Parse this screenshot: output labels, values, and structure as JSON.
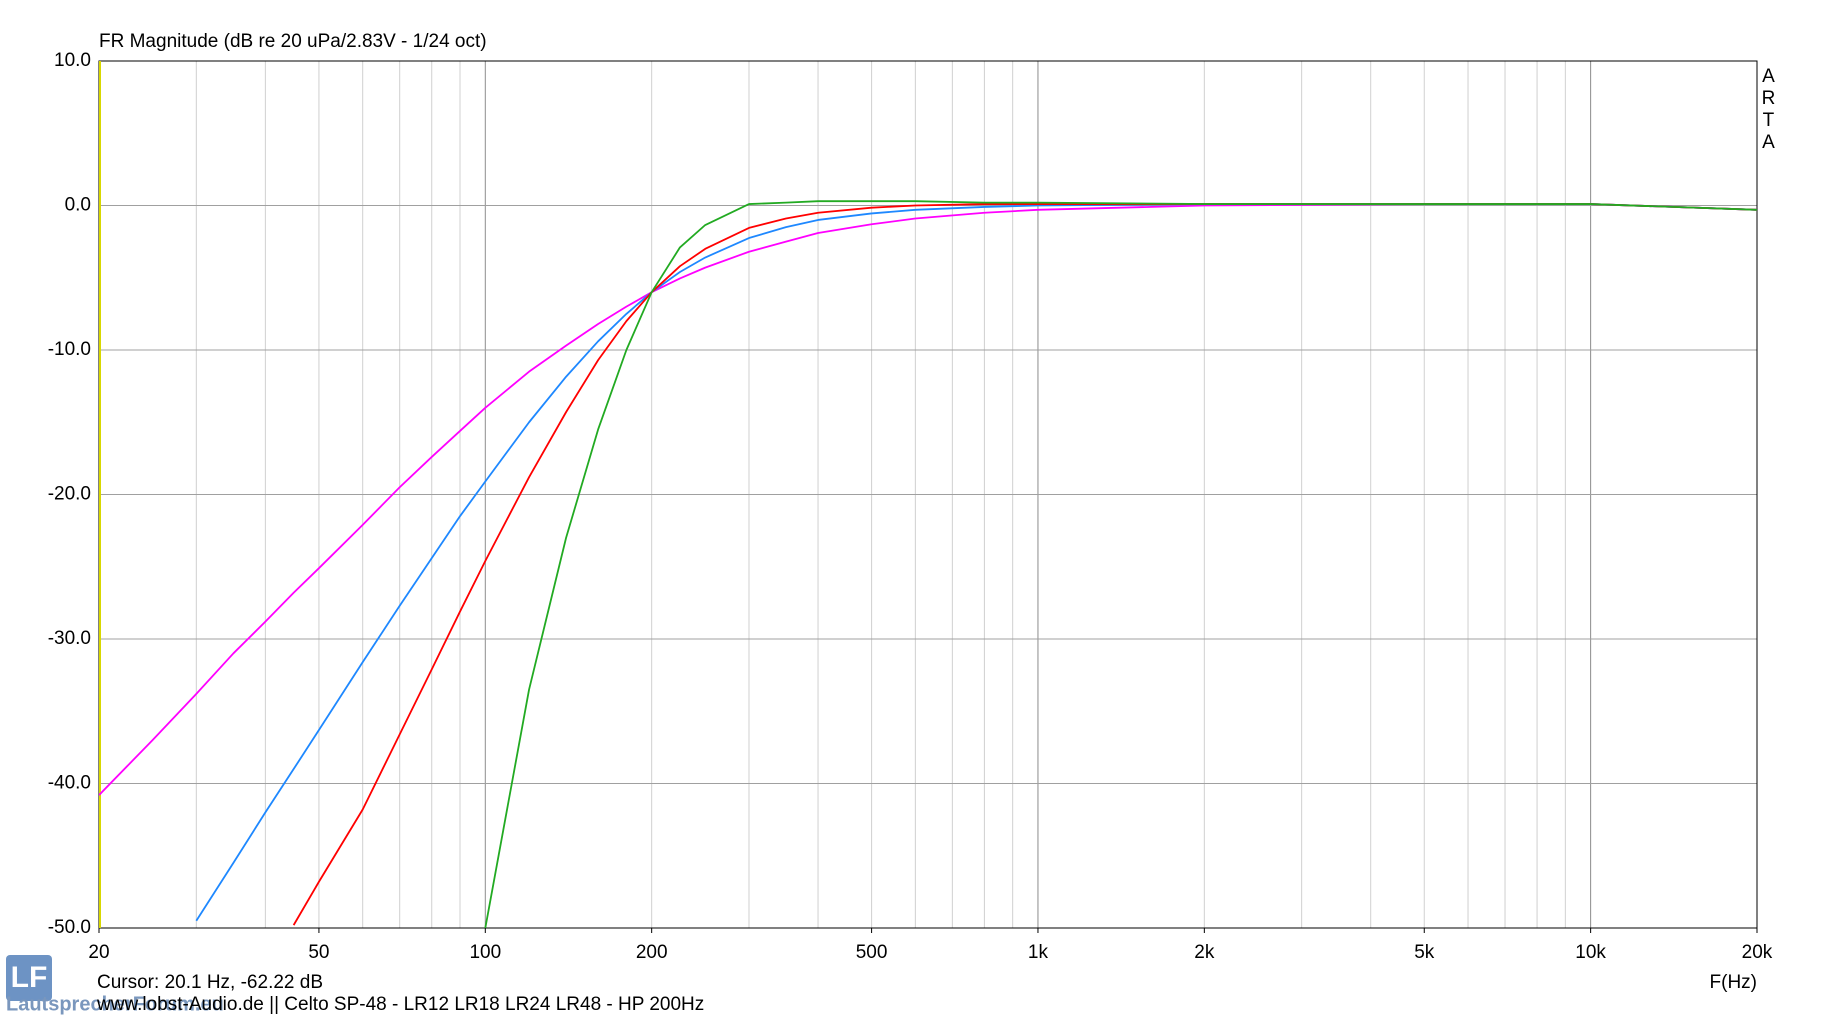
{
  "chart_data": {
    "type": "line",
    "title": "FR Magnitude (dB re 20 uPa/2.83V - 1/24 oct)",
    "brand": "ARTA",
    "cursor_readout": "Cursor: 20.1 Hz, -62.22 dB",
    "x_label": "F(Hz)",
    "footer": "www.lobst-Audio.de  ||  Celto SP-48 - LR12 LR18 LR24 LR48 - HP 200Hz",
    "logo": "LF",
    "watermark": "LautsprecherForum.eu",
    "log_x": true,
    "grid": true,
    "xlim": [
      20,
      20000
    ],
    "ylim": [
      -50,
      10
    ],
    "xticks": [
      20,
      50,
      100,
      200,
      500,
      {
        "value": 1000,
        "label": "1k"
      },
      {
        "value": 2000,
        "label": "2k"
      },
      {
        "value": 5000,
        "label": "5k"
      },
      {
        "value": 10000,
        "label": "10k"
      },
      {
        "value": 20000,
        "label": "20k"
      }
    ],
    "yticks": [
      {
        "value": 10,
        "label": "10.0"
      },
      {
        "value": 0,
        "label": "0.0"
      },
      {
        "value": -10,
        "label": "-10.0"
      },
      {
        "value": -20,
        "label": "-20.0"
      },
      {
        "value": -30,
        "label": "-30.0"
      },
      {
        "value": -40,
        "label": "-40.0"
      },
      {
        "value": -50,
        "label": "-50.0"
      }
    ],
    "x": [
      20,
      25,
      30,
      35,
      40,
      45,
      50,
      60,
      70,
      80,
      90,
      100,
      120,
      140,
      160,
      180,
      200,
      225,
      250,
      300,
      350,
      400,
      500,
      600,
      800,
      1000,
      2000,
      5000,
      10000,
      20000
    ],
    "series": [
      {
        "color": "#ff00ff",
        "values": [
          -40.8,
          -37.0,
          -33.8,
          -31.0,
          -28.8,
          -26.8,
          -25.1,
          -22.1,
          -19.5,
          -17.4,
          -15.6,
          -14.0,
          -11.5,
          -9.7,
          -8.2,
          -7.0,
          -6.0,
          -5.05,
          -4.3,
          -3.2,
          -2.5,
          -1.9,
          -1.3,
          -0.9,
          -0.5,
          -0.3,
          0.0,
          0.1,
          0.1,
          -0.3
        ]
      },
      {
        "color": "#1e88ff",
        "values": [
          null,
          null,
          -49.5,
          -45.5,
          -42.0,
          -39.0,
          -36.3,
          -31.6,
          -27.7,
          -24.4,
          -21.5,
          -19.1,
          -15.0,
          -11.85,
          -9.4,
          -7.5,
          -6.0,
          -4.6,
          -3.6,
          -2.25,
          -1.5,
          -1.0,
          -0.55,
          -0.3,
          -0.1,
          0.0,
          0.1,
          0.1,
          0.1,
          -0.3
        ]
      },
      {
        "color": "#ff0000",
        "values": [
          null,
          null,
          null,
          null,
          null,
          -49.8,
          -46.8,
          -41.8,
          -36.6,
          -32.1,
          -28.1,
          -24.6,
          -18.8,
          -14.3,
          -10.7,
          -8.0,
          -6.0,
          -4.2,
          -3.0,
          -1.55,
          -0.9,
          -0.5,
          -0.15,
          0.0,
          0.1,
          0.1,
          0.1,
          0.1,
          0.1,
          -0.3
        ]
      },
      {
        "color": "#22aa22",
        "values": [
          null,
          null,
          null,
          null,
          null,
          null,
          null,
          null,
          null,
          null,
          null,
          -50,
          -33.5,
          -23.0,
          -15.5,
          -10.0,
          -6.0,
          -2.9,
          -1.35,
          0.1,
          0.2,
          0.3,
          0.3,
          0.3,
          0.2,
          0.2,
          0.1,
          0.1,
          0.1,
          -0.3
        ]
      }
    ]
  }
}
